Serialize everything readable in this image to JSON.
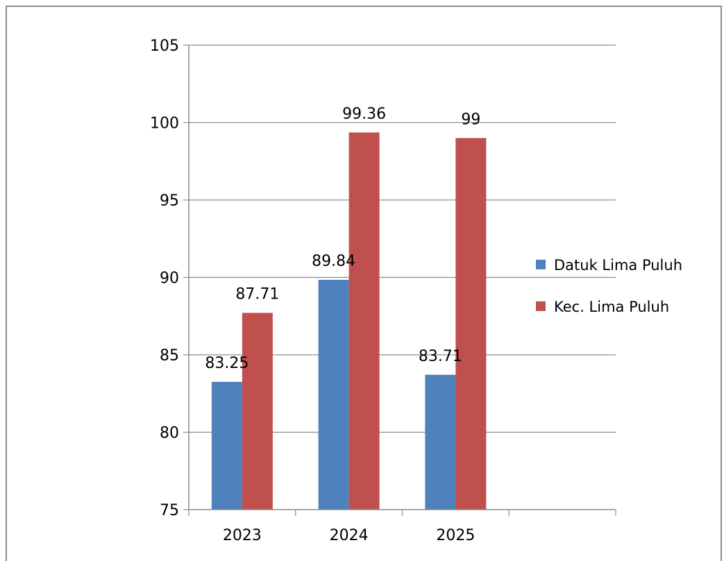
{
  "chart_data": {
    "type": "bar",
    "title": "",
    "xlabel": "",
    "ylabel": "",
    "categories": [
      "2023",
      "2024",
      "2025",
      ""
    ],
    "series": [
      {
        "name": "Datuk Lima Puluh",
        "values": [
          83.25,
          89.84,
          83.71,
          null
        ],
        "color": "#4f81bd"
      },
      {
        "name": "Kec. Lima Puluh",
        "values": [
          87.71,
          99.36,
          99,
          null
        ],
        "color": "#c0504d"
      }
    ],
    "data_labels": [
      [
        "83.25",
        "89.84",
        "83.71",
        ""
      ],
      [
        "87.71",
        "99.36",
        "99",
        ""
      ]
    ],
    "ylim": [
      75,
      105
    ],
    "yticks": [
      75,
      80,
      85,
      90,
      95,
      100,
      105
    ],
    "grid": true,
    "legend": "right",
    "gridline_color": "#8c8c8c"
  }
}
